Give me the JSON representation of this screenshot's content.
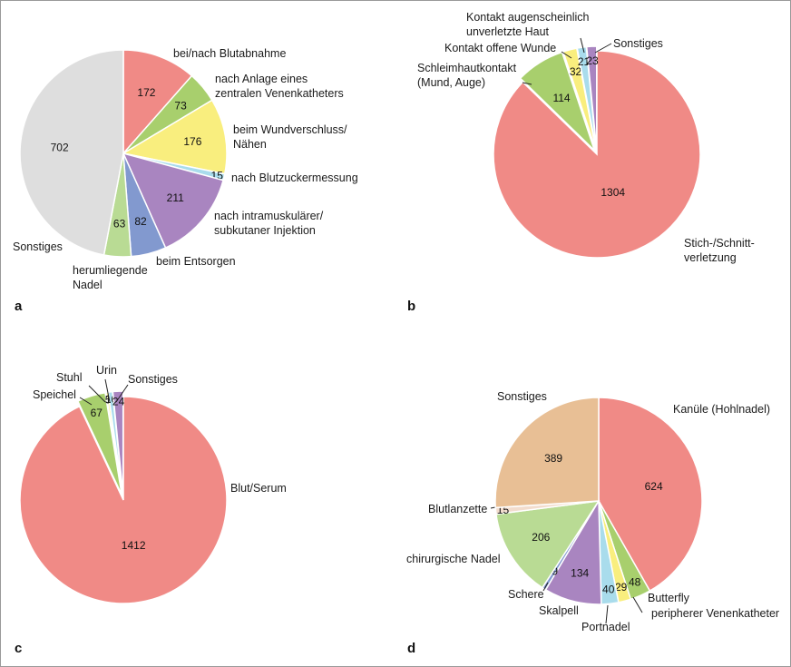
{
  "chart_data": [
    {
      "type": "pie",
      "panel": "a",
      "slices": [
        {
          "label": "bei/nach Blutabnahme",
          "value": 172,
          "color": "#f08a86"
        },
        {
          "label": "nach Anlage eines\nzentralen Venenkatheters",
          "value": 73,
          "color": "#a8cf6d"
        },
        {
          "label": "beim Wundverschluss/\nNähen",
          "value": 176,
          "color": "#f9ee7e"
        },
        {
          "label": "nach Blutzuckermessung",
          "value": 15,
          "color": "#a9dcec"
        },
        {
          "label": "nach intramuskulärer/\nsubkutaner Injektion",
          "value": 211,
          "color": "#a985c0"
        },
        {
          "label": "beim Entsorgen",
          "value": 82,
          "color": "#8299cf"
        },
        {
          "label": "herumliegende\nNadel",
          "value": 63,
          "color": "#b9db94"
        },
        {
          "label": "Sonstiges",
          "value": 702,
          "color": "#dedede"
        }
      ]
    },
    {
      "type": "pie",
      "panel": "b",
      "slices": [
        {
          "label": "Stich-/Schnitt-\nverletzung",
          "value": 1304,
          "color": "#f08a86"
        },
        {
          "label": "Schleimhautkontakt\n(Mund, Auge)",
          "value": 114,
          "color": "#a8cf6d"
        },
        {
          "label": "Kontakt offene Wunde",
          "value": 32,
          "color": "#f9ee7e"
        },
        {
          "label": "Kontakt augenscheinlich\nunverletzte Haut",
          "value": 21,
          "color": "#a9dcec"
        },
        {
          "label": "Sonstiges",
          "value": 23,
          "color": "#a985c0"
        }
      ]
    },
    {
      "type": "pie",
      "panel": "c",
      "slices": [
        {
          "label": "Blut/Serum",
          "value": 1412,
          "color": "#f08a86"
        },
        {
          "label": "Speichel",
          "value": 67,
          "color": "#a8cf6d"
        },
        {
          "label": "Stuhl",
          "value": 5,
          "color": "#f9ee7e"
        },
        {
          "label": "Urin",
          "value": 10,
          "color": "#a9dcec"
        },
        {
          "label": "Sonstiges",
          "value": 24,
          "color": "#a985c0"
        }
      ]
    },
    {
      "type": "pie",
      "panel": "d",
      "slices": [
        {
          "label": "Kanüle (Hohlnadel)",
          "value": 624,
          "color": "#f08a86"
        },
        {
          "label": "Butterfly",
          "value": 48,
          "color": "#a8cf6d"
        },
        {
          "label": "peripherer Venenkatheter",
          "value": 29,
          "color": "#f9ee7e"
        },
        {
          "label": "Portnadel",
          "value": 40,
          "color": "#a9dcec"
        },
        {
          "label": "Skalpell",
          "value": 134,
          "color": "#a985c0"
        },
        {
          "label": "Schere",
          "value": 9,
          "color": "#8299cf"
        },
        {
          "label": "chirurgische Nadel",
          "value": 206,
          "color": "#b9db94"
        },
        {
          "label": "Blutlanzette",
          "value": 15,
          "color": "#f2dccd"
        },
        {
          "label": "Sonstiges",
          "value": 389,
          "color": "#e8bf95"
        }
      ]
    }
  ]
}
